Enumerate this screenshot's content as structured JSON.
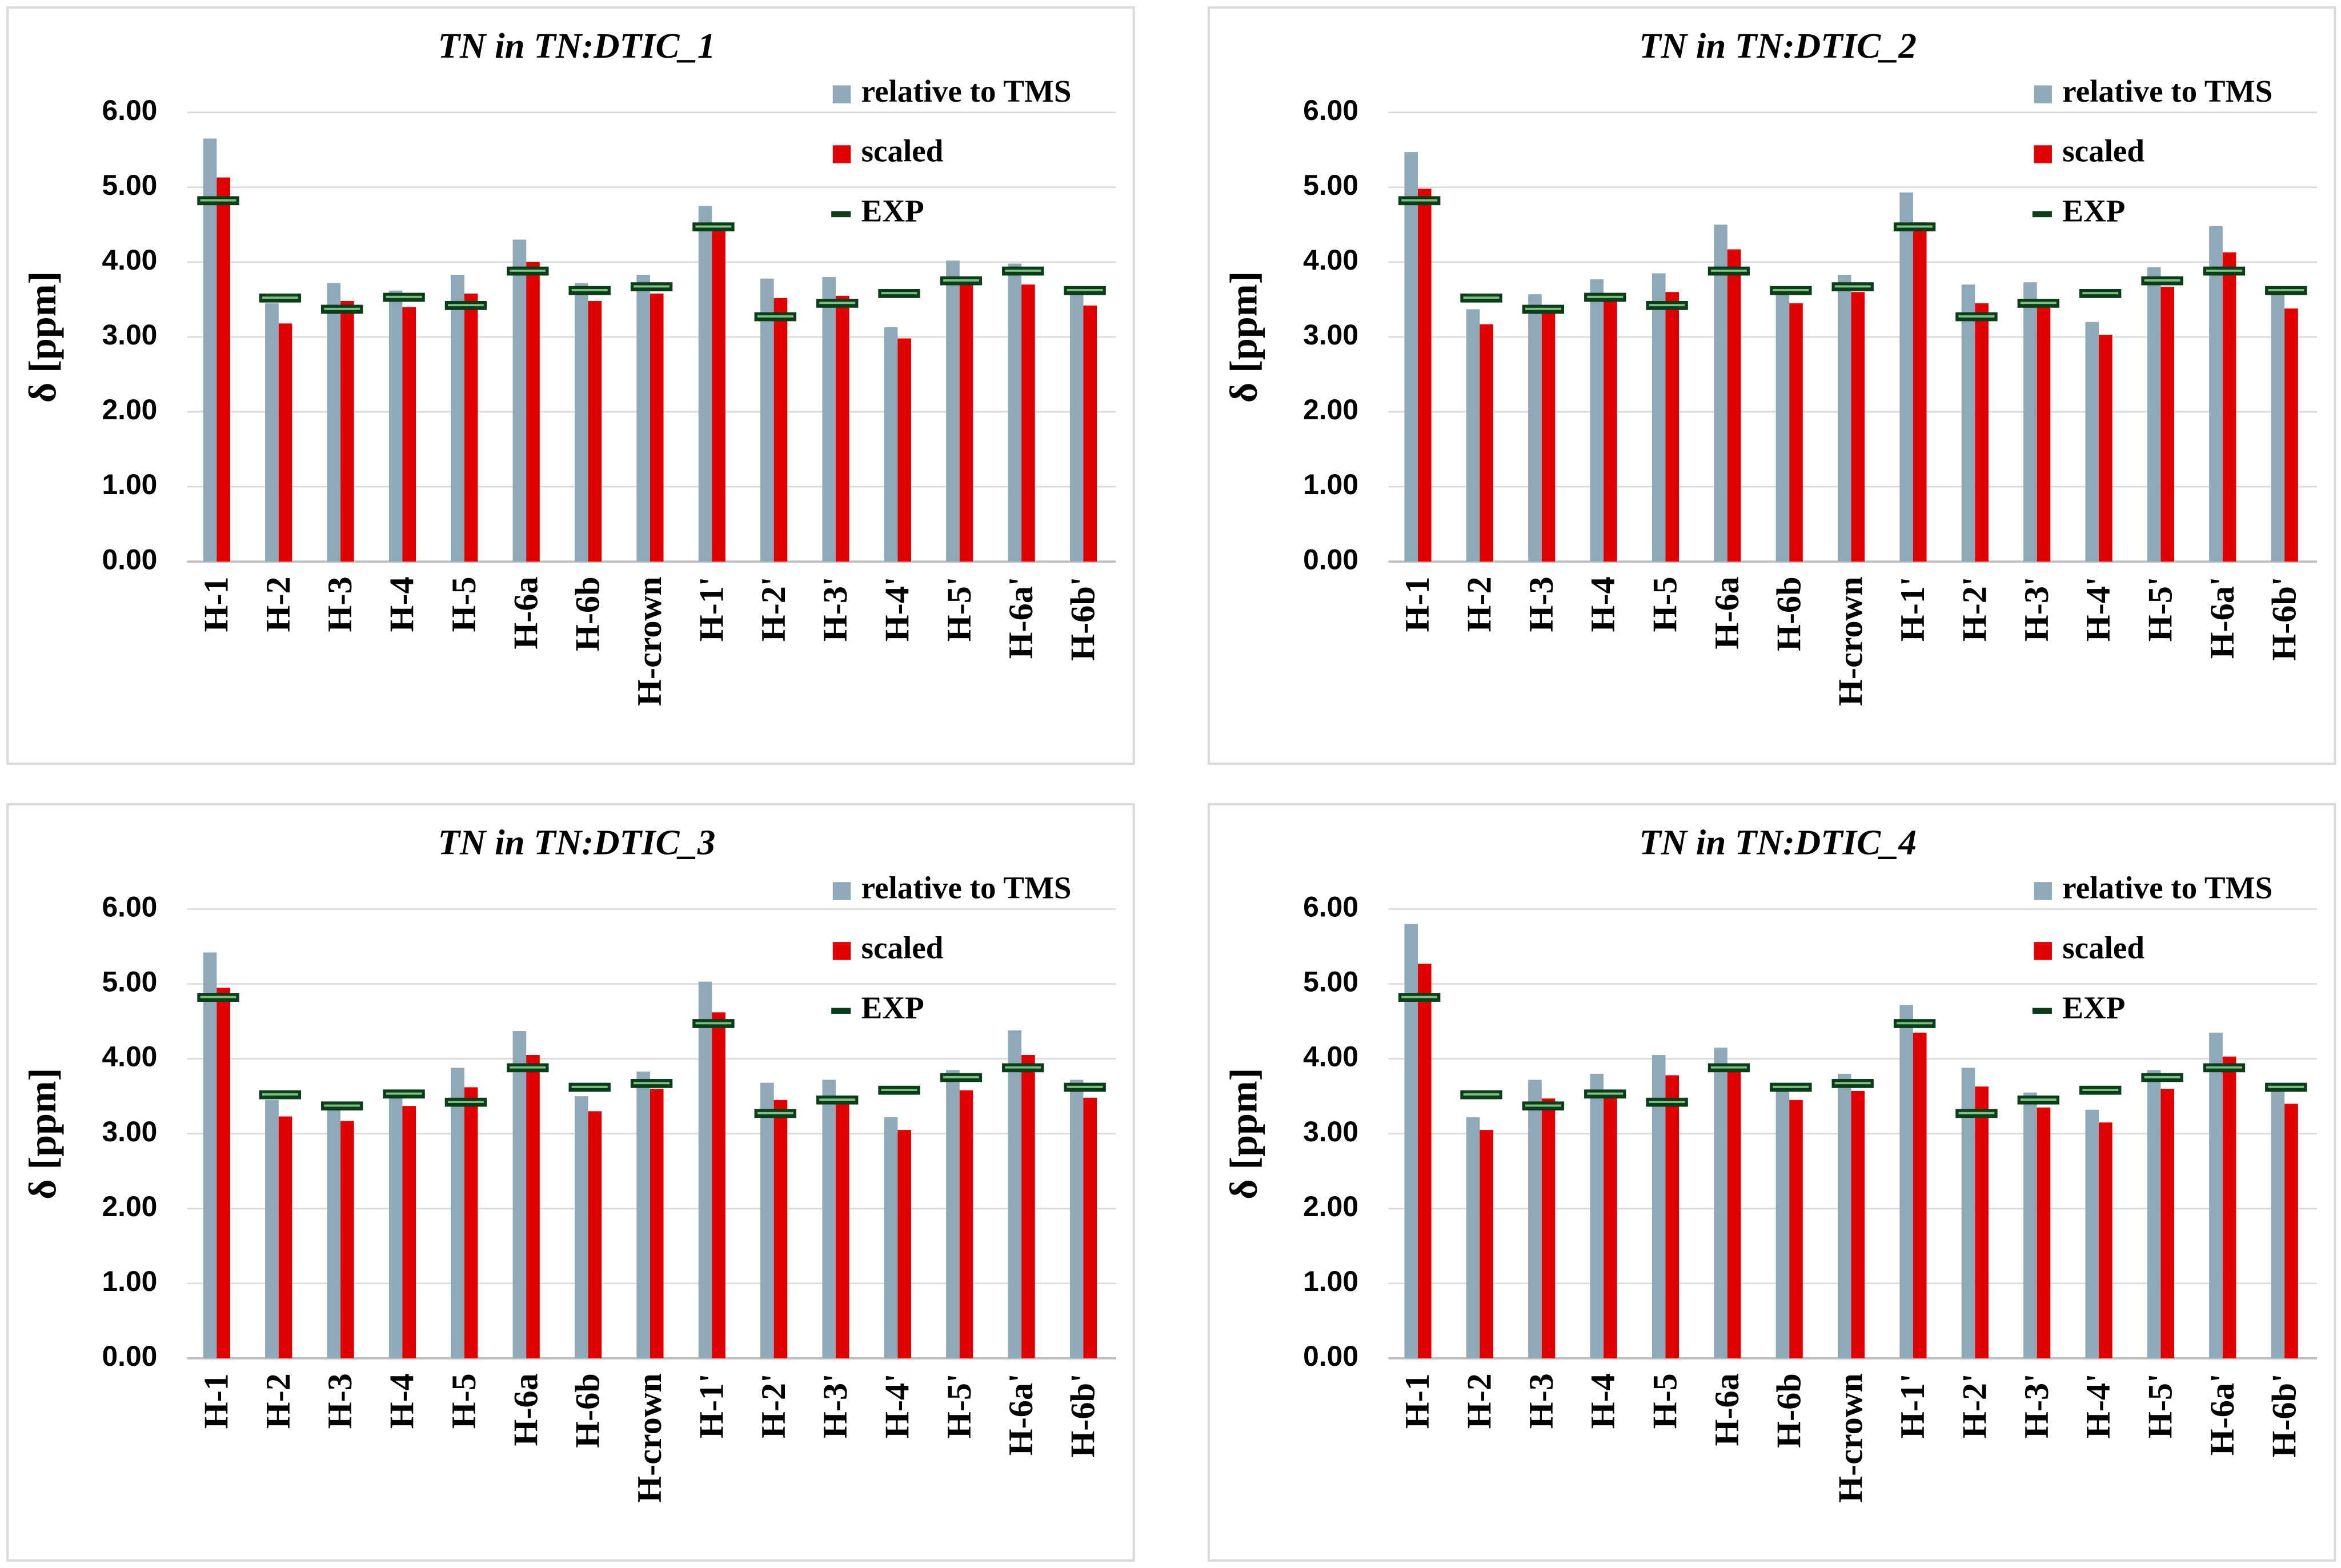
{
  "chart_data": [
    {
      "type": "bar",
      "title": "TN in TN:DTIC_1",
      "y_label": "δ [ppm]",
      "categories": [
        "H-1",
        "H-2",
        "H-3",
        "H-4",
        "H-5",
        "H-6a",
        "H-6b",
        "H-crown",
        "H-1'",
        "H-2'",
        "H-3'",
        "H-4'",
        "H-5'",
        "H-6a'",
        "H-6b'"
      ],
      "series": [
        {
          "name": "relative to TMS",
          "color": "#8fa9b8",
          "values": [
            5.65,
            3.45,
            3.72,
            3.62,
            3.83,
            4.3,
            3.72,
            3.83,
            4.75,
            3.78,
            3.8,
            3.13,
            4.02,
            3.98,
            3.65
          ]
        },
        {
          "name": "scaled",
          "color": "#e00000",
          "values": [
            5.13,
            3.18,
            3.48,
            3.4,
            3.58,
            4.0,
            3.48,
            3.58,
            4.42,
            3.52,
            3.55,
            2.98,
            3.75,
            3.7,
            3.42
          ]
        },
        {
          "name": "EXP",
          "color": "#0b3d1a",
          "mark": "dash",
          "values": [
            4.82,
            3.52,
            3.37,
            3.53,
            3.42,
            3.88,
            3.62,
            3.67,
            4.47,
            3.27,
            3.45,
            3.58,
            3.75,
            3.88,
            3.62
          ]
        }
      ],
      "ylim": [
        0,
        6
      ],
      "yticks": [
        {
          "value": 0,
          "label": "0.00"
        },
        {
          "value": 1,
          "label": "1.00"
        },
        {
          "value": 2,
          "label": "2.00"
        },
        {
          "value": 3,
          "label": "3.00"
        },
        {
          "value": 4,
          "label": "4.00"
        },
        {
          "value": 5,
          "label": "5.00"
        },
        {
          "value": 6,
          "label": "6.00"
        }
      ],
      "grid": true,
      "legend": "top-right"
    },
    {
      "type": "bar",
      "title": "TN in TN:DTIC_2",
      "y_label": "δ [ppm]",
      "categories": [
        "H-1",
        "H-2",
        "H-3",
        "H-4",
        "H-5",
        "H-6a",
        "H-6b",
        "H-crown",
        "H-1'",
        "H-2'",
        "H-3'",
        "H-4'",
        "H-5'",
        "H-6a'",
        "H-6b'"
      ],
      "series": [
        {
          "name": "relative to TMS",
          "color": "#8fa9b8",
          "values": [
            5.47,
            3.37,
            3.57,
            3.77,
            3.85,
            4.5,
            3.65,
            3.83,
            4.93,
            3.7,
            3.73,
            3.2,
            3.93,
            4.48,
            3.62
          ]
        },
        {
          "name": "scaled",
          "color": "#e00000",
          "values": [
            4.98,
            3.17,
            3.35,
            3.53,
            3.6,
            4.17,
            3.45,
            3.6,
            4.53,
            3.45,
            3.47,
            3.03,
            3.67,
            4.13,
            3.38
          ]
        },
        {
          "name": "EXP",
          "color": "#0b3d1a",
          "mark": "dash",
          "values": [
            4.82,
            3.52,
            3.37,
            3.53,
            3.42,
            3.88,
            3.62,
            3.67,
            4.47,
            3.27,
            3.45,
            3.58,
            3.75,
            3.88,
            3.62
          ]
        }
      ],
      "ylim": [
        0,
        6
      ],
      "yticks": [
        {
          "value": 0,
          "label": "0.00"
        },
        {
          "value": 1,
          "label": "1.00"
        },
        {
          "value": 2,
          "label": "2.00"
        },
        {
          "value": 3,
          "label": "3.00"
        },
        {
          "value": 4,
          "label": "4.00"
        },
        {
          "value": 5,
          "label": "5.00"
        },
        {
          "value": 6,
          "label": "6.00"
        }
      ],
      "grid": true,
      "legend": "top-right"
    },
    {
      "type": "bar",
      "title": "TN in TN:DTIC_3",
      "y_label": "δ [ppm]",
      "categories": [
        "H-1",
        "H-2",
        "H-3",
        "H-4",
        "H-5",
        "H-6a",
        "H-6b",
        "H-crown",
        "H-1'",
        "H-2'",
        "H-3'",
        "H-4'",
        "H-5'",
        "H-6a'",
        "H-6b'"
      ],
      "series": [
        {
          "name": "relative to TMS",
          "color": "#8fa9b8",
          "values": [
            5.42,
            3.45,
            3.35,
            3.55,
            3.88,
            4.37,
            3.5,
            3.83,
            5.03,
            3.68,
            3.72,
            3.22,
            3.85,
            4.38,
            3.72
          ]
        },
        {
          "name": "scaled",
          "color": "#e00000",
          "values": [
            4.95,
            3.23,
            3.17,
            3.37,
            3.62,
            4.05,
            3.3,
            3.6,
            4.62,
            3.45,
            3.48,
            3.05,
            3.58,
            4.05,
            3.48
          ]
        },
        {
          "name": "EXP",
          "color": "#0b3d1a",
          "mark": "dash",
          "values": [
            4.82,
            3.52,
            3.37,
            3.53,
            3.42,
            3.88,
            3.62,
            3.67,
            4.47,
            3.27,
            3.45,
            3.58,
            3.75,
            3.88,
            3.62
          ]
        }
      ],
      "ylim": [
        0,
        6
      ],
      "yticks": [
        {
          "value": 0,
          "label": "0.00"
        },
        {
          "value": 1,
          "label": "1.00"
        },
        {
          "value": 2,
          "label": "2.00"
        },
        {
          "value": 3,
          "label": "3.00"
        },
        {
          "value": 4,
          "label": "4.00"
        },
        {
          "value": 5,
          "label": "5.00"
        },
        {
          "value": 6,
          "label": "6.00"
        }
      ],
      "grid": true,
      "legend": "top-right"
    },
    {
      "type": "bar",
      "title": "TN in TN:DTIC_4",
      "y_label": "δ [ppm]",
      "categories": [
        "H-1",
        "H-2",
        "H-3",
        "H-4",
        "H-5",
        "H-6a",
        "H-6b",
        "H-crown",
        "H-1'",
        "H-2'",
        "H-3'",
        "H-4'",
        "H-5'",
        "H-6a'",
        "H-6b'"
      ],
      "series": [
        {
          "name": "relative to TMS",
          "color": "#8fa9b8",
          "values": [
            5.8,
            3.22,
            3.72,
            3.8,
            4.05,
            4.15,
            3.65,
            3.8,
            4.72,
            3.88,
            3.55,
            3.32,
            3.85,
            4.35,
            3.6
          ]
        },
        {
          "name": "scaled",
          "color": "#e00000",
          "values": [
            5.27,
            3.05,
            3.47,
            3.55,
            3.78,
            3.85,
            3.45,
            3.57,
            4.35,
            3.63,
            3.35,
            3.15,
            3.6,
            4.03,
            3.4
          ]
        },
        {
          "name": "EXP",
          "color": "#0b3d1a",
          "mark": "dash",
          "values": [
            4.82,
            3.52,
            3.37,
            3.53,
            3.42,
            3.88,
            3.62,
            3.67,
            4.47,
            3.27,
            3.45,
            3.58,
            3.75,
            3.88,
            3.62
          ]
        }
      ],
      "ylim": [
        0,
        6
      ],
      "yticks": [
        {
          "value": 0,
          "label": "0.00"
        },
        {
          "value": 1,
          "label": "1.00"
        },
        {
          "value": 2,
          "label": "2.00"
        },
        {
          "value": 3,
          "label": "3.00"
        },
        {
          "value": 4,
          "label": "4.00"
        },
        {
          "value": 5,
          "label": "5.00"
        },
        {
          "value": 6,
          "label": "6.00"
        }
      ],
      "grid": true,
      "legend": "top-right"
    }
  ]
}
